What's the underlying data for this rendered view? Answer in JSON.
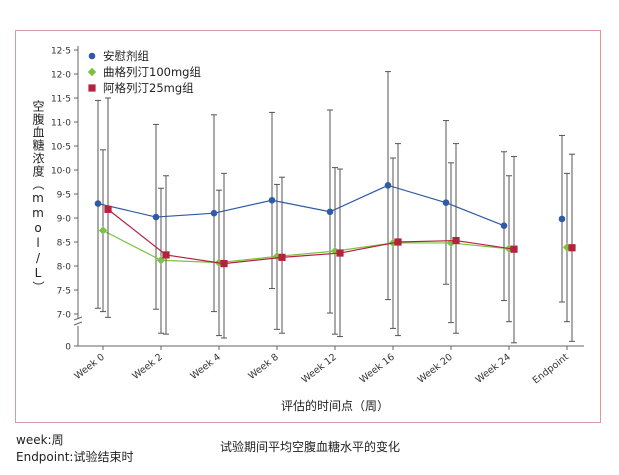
{
  "chart_data": {
    "type": "line",
    "title": "",
    "xlabel": "评估的时间点（周）",
    "ylabel": "空腹血糖浓度（mmol/L）",
    "categories": [
      "Week 0",
      "Week 2",
      "Week 4",
      "Week 8",
      "Week 12",
      "Week 16",
      "Week 20",
      "Week 24",
      "Endpoint"
    ],
    "y_ticks": [
      "7.0",
      "7.5",
      "8.0",
      "8.5",
      "9.0",
      "9.5",
      "10.0",
      "10.5",
      "11.0",
      "11.5",
      "12.0",
      "12.5"
    ],
    "y_tick_labels": [
      "7·0",
      "7·5",
      "8·0",
      "8·5",
      "9·0",
      "9·5",
      "10·0",
      "10·5",
      "11·0",
      "11·5",
      "12·0",
      "12·5"
    ],
    "y_origin_label": "0",
    "ylim": [
      6.5,
      12.5
    ],
    "axis_break": true,
    "grid": false,
    "legend_position": "top-left",
    "series": [
      {
        "name": "安慰剂组",
        "color": "#2e5aa8",
        "marker": "circle",
        "values": [
          9.3,
          9.02,
          9.1,
          9.37,
          9.13,
          9.68,
          9.32,
          8.84,
          8.98
        ],
        "error_upper": [
          11.45,
          10.95,
          11.15,
          11.2,
          11.25,
          12.05,
          11.03,
          10.38,
          10.72
        ],
        "error_lower": [
          7.12,
          7.1,
          7.05,
          7.53,
          7.02,
          7.3,
          7.62,
          7.28,
          7.25
        ],
        "connected_points": 8
      },
      {
        "name": "曲格列汀100mg组",
        "color": "#7dc242",
        "marker": "diamond",
        "values": [
          8.74,
          8.12,
          8.07,
          8.2,
          8.31,
          8.48,
          8.48,
          8.36,
          8.39
        ],
        "error_upper": [
          10.42,
          9.62,
          9.58,
          9.7,
          10.05,
          10.25,
          10.15,
          9.88,
          9.93
        ],
        "error_lower": [
          7.05,
          6.6,
          6.55,
          6.68,
          6.58,
          6.7,
          6.82,
          6.84,
          6.84
        ],
        "connected_points": 8
      },
      {
        "name": "阿格列汀25mg组",
        "color": "#b5223e",
        "marker": "square",
        "values": [
          9.18,
          8.23,
          8.05,
          8.18,
          8.27,
          8.5,
          8.53,
          8.35,
          8.38
        ],
        "error_upper": [
          11.5,
          9.88,
          9.93,
          9.85,
          10.02,
          10.55,
          10.55,
          10.28,
          10.33
        ],
        "error_lower": [
          6.93,
          6.58,
          6.5,
          6.6,
          6.53,
          6.55,
          6.6,
          6.4,
          6.43
        ],
        "connected_points": 8
      }
    ]
  },
  "notes": {
    "week": "week:周",
    "endpoint": "Endpoint:试验结束时"
  },
  "caption": "试验期间平均空腹血糖水平的变化"
}
